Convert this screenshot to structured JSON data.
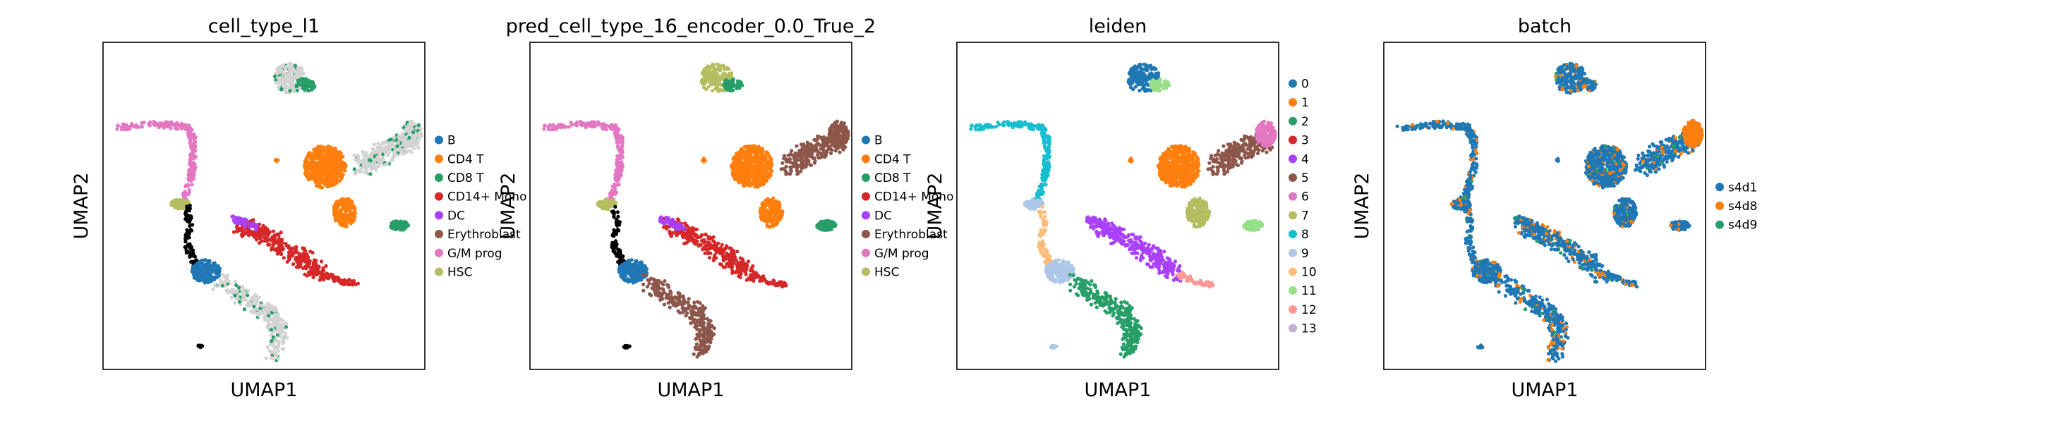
{
  "figure": {
    "background": "#ffffff"
  },
  "chart_data": [
    {
      "type": "scatter",
      "title": "cell_type_l1",
      "xlabel": "UMAP1",
      "ylabel": "UMAP2",
      "grid": false,
      "legend": {
        "position": "right",
        "entries": [
          {
            "label": "B",
            "color": "#1f77b4"
          },
          {
            "label": "CD4 T",
            "color": "#ff7f0e"
          },
          {
            "label": "CD8 T",
            "color": "#279e68"
          },
          {
            "label": "CD14+ Mono",
            "color": "#d62728"
          },
          {
            "label": "DC",
            "color": "#aa40fc"
          },
          {
            "label": "Erythroblast",
            "color": "#8c564b"
          },
          {
            "label": "G/M prog",
            "color": "#e377c2"
          },
          {
            "label": "HSC",
            "color": "#b5bd61"
          }
        ]
      }
    },
    {
      "type": "scatter",
      "title": "pred_cell_type_16_encoder_0.0_True_2",
      "xlabel": "UMAP1",
      "ylabel": "UMAP2",
      "grid": false,
      "legend": {
        "position": "right",
        "entries": [
          {
            "label": "B",
            "color": "#1f77b4"
          },
          {
            "label": "CD4 T",
            "color": "#ff7f0e"
          },
          {
            "label": "CD8 T",
            "color": "#279e68"
          },
          {
            "label": "CD14+ Mono",
            "color": "#d62728"
          },
          {
            "label": "DC",
            "color": "#aa40fc"
          },
          {
            "label": "Erythroblast",
            "color": "#8c564b"
          },
          {
            "label": "G/M prog",
            "color": "#e377c2"
          },
          {
            "label": "HSC",
            "color": "#b5bd61"
          }
        ]
      }
    },
    {
      "type": "scatter",
      "title": "leiden",
      "xlabel": "UMAP1",
      "ylabel": "UMAP2",
      "grid": false,
      "legend": {
        "position": "right",
        "entries": [
          {
            "label": "0",
            "color": "#1f77b4"
          },
          {
            "label": "1",
            "color": "#ff7f0e"
          },
          {
            "label": "2",
            "color": "#279e68"
          },
          {
            "label": "3",
            "color": "#d62728"
          },
          {
            "label": "4",
            "color": "#aa40fc"
          },
          {
            "label": "5",
            "color": "#8c564b"
          },
          {
            "label": "6",
            "color": "#e377c2"
          },
          {
            "label": "7",
            "color": "#b5bd61"
          },
          {
            "label": "8",
            "color": "#17becf"
          },
          {
            "label": "9",
            "color": "#aec7e8"
          },
          {
            "label": "10",
            "color": "#ffbb78"
          },
          {
            "label": "11",
            "color": "#98df8a"
          },
          {
            "label": "12",
            "color": "#ff9896"
          },
          {
            "label": "13",
            "color": "#c5b0d5"
          }
        ]
      }
    },
    {
      "type": "scatter",
      "title": "batch",
      "xlabel": "UMAP1",
      "ylabel": "UMAP2",
      "grid": false,
      "legend": {
        "position": "right",
        "entries": [
          {
            "label": "s4d1",
            "color": "#1f77b4"
          },
          {
            "label": "s4d8",
            "color": "#ff7f0e"
          },
          {
            "label": "s4d9",
            "color": "#279e68"
          }
        ]
      }
    }
  ]
}
